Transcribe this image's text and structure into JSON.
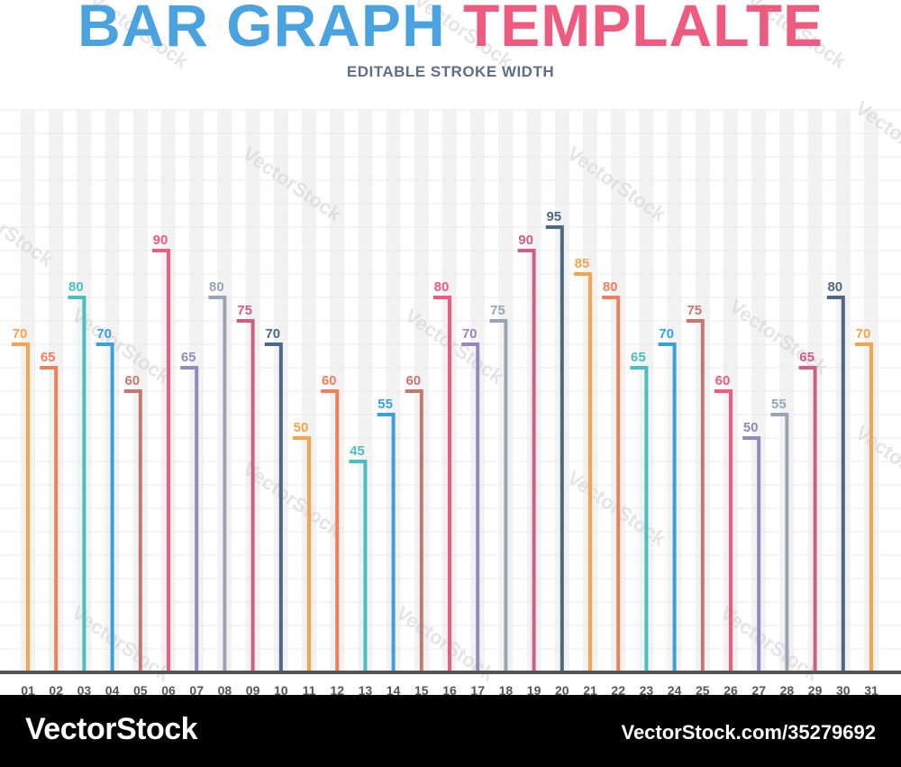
{
  "header": {
    "title_part1": "BAR GRAPH",
    "title_part2": "TEMPLALTE",
    "subtitle": "EDITABLE STROKE WIDTH"
  },
  "footer": {
    "brand": "VectorStock",
    "stock_id": "VectorStock.com/35279692"
  },
  "watermark_text": "VectorStock",
  "colors": {
    "title_blue": "#4aa3de",
    "title_red": "#ef5b7e",
    "axis": "#555555"
  },
  "chart_data": {
    "type": "bar",
    "categories": [
      "01",
      "02",
      "03",
      "04",
      "05",
      "06",
      "07",
      "08",
      "09",
      "10",
      "11",
      "12",
      "13",
      "14",
      "15",
      "16",
      "17",
      "18",
      "19",
      "20",
      "21",
      "22",
      "23",
      "24",
      "25",
      "26",
      "27",
      "28",
      "29",
      "30",
      "31"
    ],
    "values": [
      70,
      65,
      80,
      70,
      60,
      90,
      65,
      80,
      75,
      70,
      50,
      60,
      45,
      55,
      60,
      80,
      70,
      75,
      90,
      95,
      85,
      80,
      65,
      70,
      75,
      60,
      50,
      55,
      65,
      80,
      70
    ],
    "colors": [
      "#f7a34b",
      "#f07f5c",
      "#4bbfbf",
      "#3aa0d9",
      "#c07a72",
      "#ef5b7e",
      "#9689b9",
      "#97a6b7",
      "#d05d84",
      "#4e6785",
      "#f7a34b",
      "#f07f5c",
      "#4bbfbf",
      "#3aa0d9",
      "#c07a72",
      "#ef5b7e",
      "#9689b9",
      "#97a6b7",
      "#d05d84",
      "#4e6785",
      "#f7a34b",
      "#f07f5c",
      "#4bbfbf",
      "#3aa0d9",
      "#c07a72",
      "#ef5b7e",
      "#9689b9",
      "#97a6b7",
      "#d05d84",
      "#4e6785",
      "#f7a34b"
    ],
    "ylim": [
      0,
      120
    ],
    "grid": true
  }
}
